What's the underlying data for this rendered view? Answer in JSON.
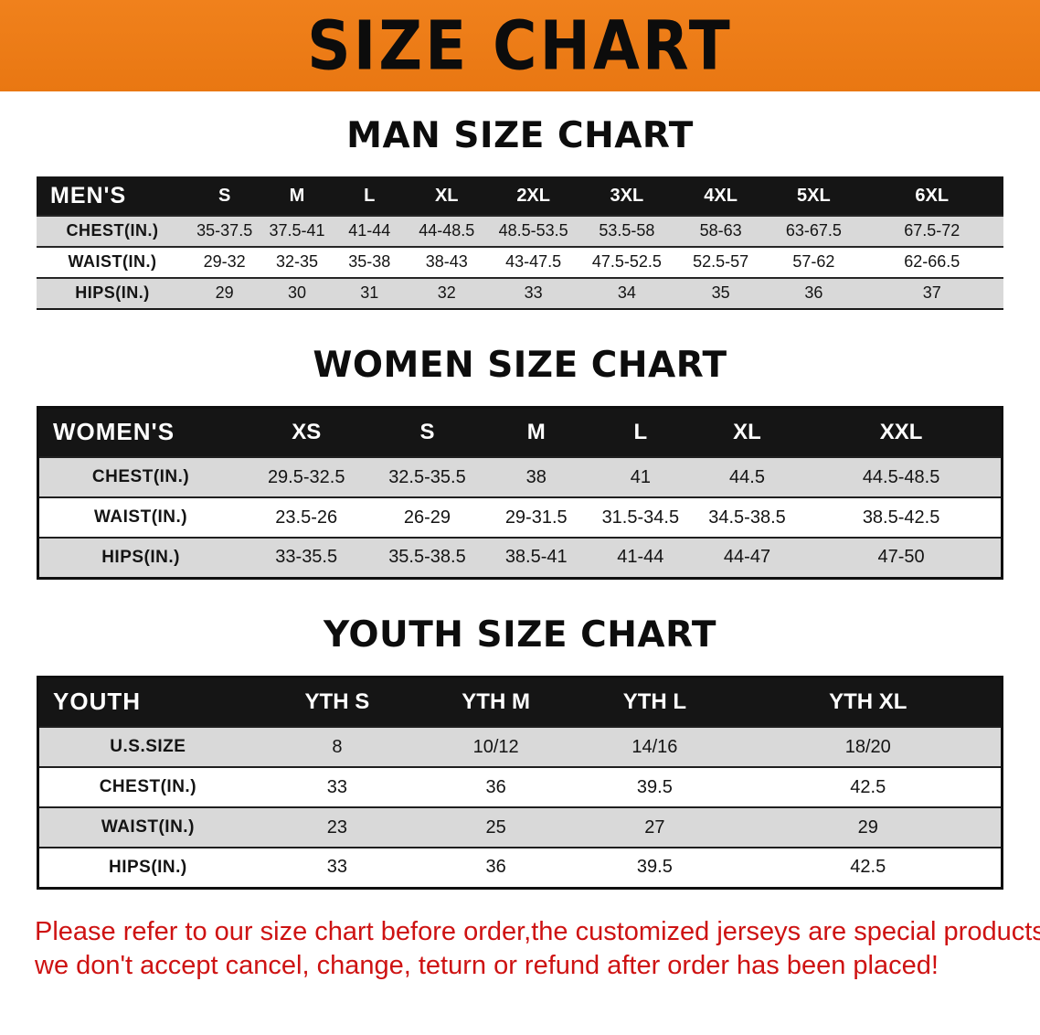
{
  "banner": {
    "title": "SIZE CHART"
  },
  "colors": {
    "banner_bg": "#F0811C",
    "banner_bg_dark": "#E97712",
    "header_bg": "#151515",
    "row_gray": "#D9D9D9",
    "row_white": "#FFFFFF",
    "footer_text": "#CE1212"
  },
  "sections": [
    {
      "id": "men",
      "heading": "MAN SIZE CHART",
      "columns": [
        "MEN'S",
        "S",
        "M",
        "L",
        "XL",
        "2XL",
        "3XL",
        "4XL",
        "5XL",
        "6XL"
      ],
      "rows": [
        {
          "label": "CHEST(IN.)",
          "values": [
            "35-37.5",
            "37.5-41",
            "41-44",
            "44-48.5",
            "48.5-53.5",
            "53.5-58",
            "58-63",
            "63-67.5",
            "67.5-72"
          ]
        },
        {
          "label": "WAIST(IN.)",
          "values": [
            "29-32",
            "32-35",
            "35-38",
            "38-43",
            "43-47.5",
            "47.5-52.5",
            "52.5-57",
            "57-62",
            "62-66.5"
          ]
        },
        {
          "label": "HIPS(IN.)",
          "values": [
            "29",
            "30",
            "31",
            "32",
            "33",
            "34",
            "35",
            "36",
            "37"
          ]
        }
      ]
    },
    {
      "id": "women",
      "heading": "WOMEN SIZE CHART",
      "columns": [
        "WOMEN'S",
        "XS",
        "S",
        "M",
        "L",
        "XL",
        "XXL"
      ],
      "rows": [
        {
          "label": "CHEST(IN.)",
          "values": [
            "29.5-32.5",
            "32.5-35.5",
            "38",
            "41",
            "44.5",
            "44.5-48.5"
          ]
        },
        {
          "label": "WAIST(IN.)",
          "values": [
            "23.5-26",
            "26-29",
            "29-31.5",
            "31.5-34.5",
            "34.5-38.5",
            "38.5-42.5"
          ]
        },
        {
          "label": "HIPS(IN.)",
          "values": [
            "33-35.5",
            "35.5-38.5",
            "38.5-41",
            "41-44",
            "44-47",
            "47-50"
          ]
        }
      ]
    },
    {
      "id": "youth",
      "heading": "YOUTH SIZE CHART",
      "columns": [
        "YOUTH",
        "YTH S",
        "YTH M",
        "YTH L",
        "YTH XL"
      ],
      "rows": [
        {
          "label": "U.S.SIZE",
          "values": [
            "8",
            "10/12",
            "14/16",
            "18/20"
          ]
        },
        {
          "label": "CHEST(IN.)",
          "values": [
            "33",
            "36",
            "39.5",
            "42.5"
          ]
        },
        {
          "label": "WAIST(IN.)",
          "values": [
            "23",
            "25",
            "27",
            "29"
          ]
        },
        {
          "label": "HIPS(IN.)",
          "values": [
            "33",
            "36",
            "39.5",
            "42.5"
          ]
        }
      ]
    }
  ],
  "footer": {
    "line1": "Please refer to our size chart before order,the customized jerseys are special products,",
    "line2": "we don't accept cancel, change, teturn or refund after order has been placed!"
  }
}
